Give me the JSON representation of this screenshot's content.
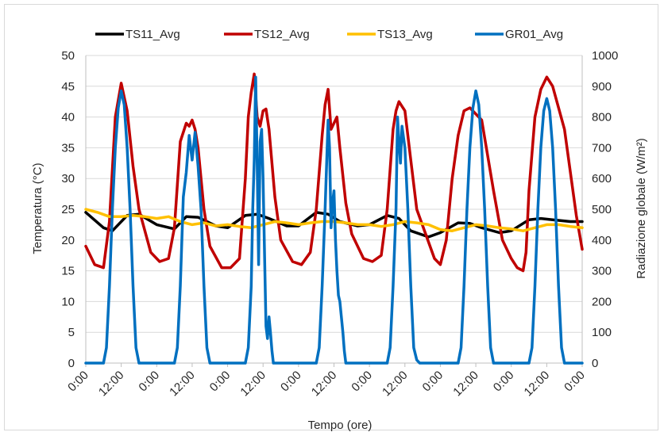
{
  "chart_data": {
    "type": "line",
    "title": "",
    "xlabel": "Tempo (ore)",
    "ylabel_left": "Temperatura (°C)",
    "ylabel_right": "Radiazione globale (W/m²)",
    "ylim_left": [
      0,
      50
    ],
    "ylim_right": [
      0,
      1000
    ],
    "yticks_left": [
      "0",
      "5",
      "10",
      "15",
      "20",
      "25",
      "30",
      "35",
      "40",
      "45",
      "50"
    ],
    "yticks_right": [
      "0",
      "100",
      "200",
      "300",
      "400",
      "500",
      "600",
      "700",
      "800",
      "900",
      "1000"
    ],
    "xticks": [
      "0:00",
      "12:00",
      "0:00",
      "12:00",
      "0:00",
      "12:00",
      "0:00",
      "12:00",
      "0:00",
      "12:00",
      "0:00",
      "12:00",
      "0:00",
      "12:00",
      "0:00"
    ],
    "xlim_hours": [
      0,
      168
    ],
    "grid": "horizontal",
    "legend_position": "top",
    "series": [
      {
        "name": "TS11_Avg",
        "axis": "left",
        "color": "#000000",
        "x": [
          0,
          6,
          9,
          14,
          18,
          24,
          30,
          34,
          38,
          44,
          48,
          54,
          58,
          62,
          68,
          72,
          78,
          82,
          86,
          92,
          96,
          102,
          106,
          110,
          116,
          120,
          126,
          130,
          134,
          140,
          144,
          150,
          154,
          158,
          164,
          168
        ],
        "y": [
          24.5,
          22.0,
          21.5,
          24.0,
          24.2,
          22.5,
          21.8,
          23.8,
          23.7,
          22.3,
          22.0,
          24.0,
          24.2,
          23.5,
          22.3,
          22.3,
          24.5,
          24.2,
          23.0,
          22.3,
          22.5,
          24.0,
          23.5,
          21.5,
          20.5,
          21.2,
          22.8,
          22.7,
          22.0,
          21.2,
          21.5,
          23.3,
          23.5,
          23.3,
          23.0,
          23.0
        ]
      },
      {
        "name": "TS12_Avg",
        "axis": "left",
        "color": "#c00000",
        "x": [
          0,
          3,
          6,
          8,
          10,
          12,
          14,
          16,
          18,
          22,
          25,
          28,
          30,
          32,
          34,
          35,
          36,
          37,
          38,
          40,
          42,
          46,
          49,
          52,
          54,
          55,
          56,
          57,
          58,
          59,
          60,
          61,
          62,
          64,
          66,
          70,
          73,
          76,
          78,
          80,
          81,
          82,
          83,
          84,
          85,
          86,
          88,
          90,
          94,
          97,
          100,
          102,
          104,
          105,
          106,
          108,
          110,
          112,
          118,
          120,
          122,
          124,
          126,
          128,
          130,
          134,
          138,
          141,
          144,
          146,
          148,
          149,
          150,
          152,
          154,
          156,
          158,
          162,
          166,
          168
        ],
        "y": [
          19.0,
          16.0,
          15.5,
          23.0,
          40.0,
          45.5,
          41.0,
          32.0,
          25.0,
          18.0,
          16.5,
          17.0,
          22.0,
          36.0,
          39.0,
          38.5,
          39.5,
          38.0,
          35.0,
          25.0,
          19.0,
          15.5,
          15.5,
          17.0,
          30.0,
          40.0,
          44.0,
          47.0,
          40.0,
          38.5,
          41.0,
          41.3,
          38.0,
          27.0,
          20.0,
          16.5,
          16.0,
          18.0,
          25.0,
          37.0,
          42.0,
          44.5,
          38.0,
          39.0,
          40.0,
          35.0,
          26.0,
          21.0,
          17.0,
          16.5,
          17.5,
          25.0,
          38.0,
          41.0,
          42.5,
          41.0,
          33.0,
          25.0,
          17.0,
          16.0,
          20.0,
          30.0,
          37.0,
          41.0,
          41.5,
          39.5,
          28.0,
          20.0,
          17.0,
          15.5,
          15.0,
          18.0,
          28.0,
          40.0,
          44.5,
          46.5,
          45.0,
          38.0,
          24.0,
          18.5
        ]
      },
      {
        "name": "TS13_Avg",
        "axis": "left",
        "color": "#ffc000",
        "x": [
          0,
          4,
          8,
          12,
          16,
          20,
          24,
          28,
          32,
          36,
          40,
          44,
          48,
          52,
          56,
          60,
          64,
          68,
          72,
          76,
          80,
          84,
          88,
          92,
          96,
          100,
          104,
          108,
          112,
          116,
          120,
          124,
          128,
          132,
          136,
          140,
          144,
          148,
          152,
          156,
          160,
          164,
          168
        ],
        "y": [
          25.0,
          24.5,
          23.8,
          23.8,
          24.0,
          23.8,
          23.5,
          23.8,
          23.0,
          22.5,
          22.8,
          22.3,
          22.5,
          22.2,
          22.0,
          22.5,
          23.0,
          22.8,
          22.5,
          22.8,
          23.0,
          23.0,
          22.8,
          22.5,
          22.5,
          22.2,
          22.5,
          23.0,
          22.8,
          22.5,
          21.7,
          21.5,
          22.0,
          22.5,
          22.3,
          22.0,
          21.8,
          21.5,
          22.0,
          22.5,
          22.5,
          22.2,
          22.0
        ]
      },
      {
        "name": "GR01_Avg",
        "axis": "right",
        "color": "#0070c0",
        "x": [
          0,
          6,
          7,
          8,
          9,
          10,
          11,
          12,
          13,
          14,
          15,
          16,
          17,
          18,
          30,
          31,
          32,
          33,
          34,
          35,
          36,
          37,
          38,
          39,
          40,
          41,
          42,
          54,
          55,
          56,
          56.5,
          57,
          57.5,
          58,
          58.5,
          59,
          59.5,
          60,
          60.5,
          61,
          61.5,
          62,
          62.5,
          63,
          63.5,
          64,
          65,
          78,
          79,
          80,
          81,
          82,
          82.5,
          83,
          83.5,
          84,
          84.5,
          85,
          85.5,
          86,
          86.5,
          87,
          87.5,
          88,
          89,
          90,
          102,
          103,
          104,
          105,
          105.5,
          106,
          106.5,
          107,
          108,
          109,
          110,
          111,
          112,
          113,
          114,
          126,
          127,
          128,
          129,
          130,
          131,
          132,
          133,
          134,
          135,
          136,
          137,
          138,
          150,
          151,
          152,
          153,
          154,
          155,
          156,
          157,
          158,
          159,
          160,
          161,
          162,
          168
        ],
        "y": [
          0,
          0,
          50,
          250,
          500,
          700,
          830,
          885,
          840,
          700,
          500,
          250,
          50,
          0,
          0,
          50,
          250,
          540,
          620,
          740,
          660,
          750,
          640,
          500,
          250,
          50,
          0,
          0,
          50,
          250,
          500,
          660,
          930,
          650,
          320,
          720,
          760,
          600,
          350,
          120,
          80,
          150,
          100,
          40,
          0,
          0,
          0,
          0,
          50,
          250,
          500,
          790,
          700,
          440,
          520,
          560,
          400,
          300,
          220,
          200,
          150,
          100,
          40,
          0,
          0,
          0,
          0,
          50,
          250,
          500,
          800,
          720,
          650,
          770,
          700,
          500,
          250,
          50,
          10,
          0,
          0,
          0,
          50,
          250,
          500,
          700,
          830,
          885,
          840,
          700,
          500,
          250,
          50,
          0,
          0,
          50,
          250,
          500,
          700,
          820,
          860,
          820,
          700,
          500,
          250,
          50,
          0,
          0
        ]
      }
    ]
  }
}
